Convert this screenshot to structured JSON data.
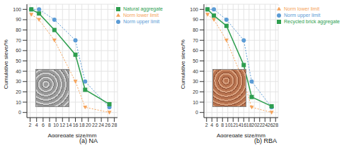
{
  "chart_data": [
    {
      "type": "line",
      "title": "(a) NA",
      "x_label": "Aggregate size/mm",
      "y_label": "Cumulative sieve/%",
      "x": [
        2.36,
        4.75,
        9.5,
        16,
        19,
        26.5
      ],
      "series": [
        {
          "name": "Norm upper limit",
          "color": "#5b9bd5",
          "marker": "circle",
          "line_style": "dotted",
          "values": [
            100,
            100,
            90,
            70,
            30,
            5
          ]
        },
        {
          "name": "Norm lower limit",
          "color": "#f5a35b",
          "marker": "triangle",
          "line_style": "dotted",
          "values": [
            95,
            90,
            70,
            30,
            5,
            0
          ]
        },
        {
          "name": "Natural aggregate",
          "color": "#2e9e4f",
          "marker": "square",
          "line_style": "solid",
          "values": [
            100,
            96,
            80,
            56,
            22,
            8
          ]
        }
      ],
      "xlim": [
        1,
        29
      ],
      "xticks": [
        2,
        4,
        6,
        8,
        10,
        12,
        14,
        16,
        18,
        20,
        22,
        24,
        26,
        28
      ],
      "ylim": [
        -5,
        105
      ],
      "yticks": [
        0,
        10,
        20,
        30,
        40,
        50,
        60,
        70,
        80,
        90,
        100
      ],
      "grid": true,
      "legend": "upper right"
    },
    {
      "type": "line",
      "title": "(b) RBA",
      "x_label": "Aggregate size/mm",
      "y_label": "Cumulative sieve/%",
      "x": [
        2.36,
        4.75,
        9.5,
        16,
        19,
        26.5
      ],
      "series": [
        {
          "name": "Norm upper limit",
          "color": "#5b9bd5",
          "marker": "circle",
          "line_style": "dotted",
          "values": [
            100,
            100,
            90,
            70,
            30,
            5
          ]
        },
        {
          "name": "Norm lower limit",
          "color": "#f5a35b",
          "marker": "triangle",
          "line_style": "dotted",
          "values": [
            95,
            90,
            70,
            30,
            5,
            0
          ]
        },
        {
          "name": "Recycled brick aggregate",
          "color": "#2e9e4f",
          "marker": "square",
          "line_style": "solid",
          "values": [
            100,
            94,
            84,
            46,
            15,
            6
          ]
        }
      ],
      "xlim": [
        1,
        29
      ],
      "xticks": [
        2,
        4,
        6,
        8,
        10,
        12,
        14,
        16,
        18,
        20,
        22,
        24,
        26,
        28
      ],
      "ylim": [
        -5,
        105
      ],
      "yticks": [
        0,
        10,
        20,
        30,
        40,
        50,
        60,
        70,
        80,
        90,
        100
      ],
      "grid": true,
      "legend": "upper right"
    }
  ]
}
